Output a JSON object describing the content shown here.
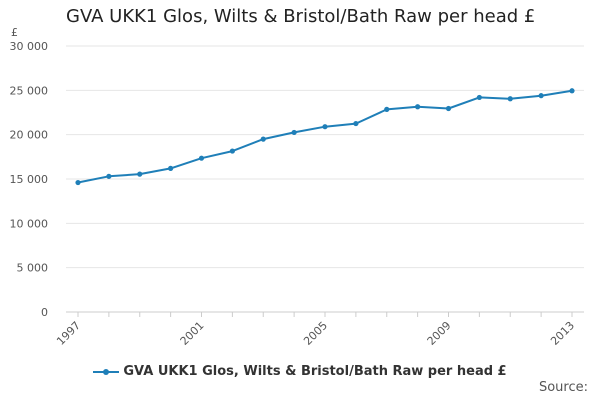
{
  "chart_data": {
    "type": "line",
    "title": "GVA UKK1 Glos, Wilts & Bristol/Bath Raw per head £",
    "unit_label": "£",
    "xlabel": "",
    "ylabel": "",
    "x": [
      1997,
      1998,
      1999,
      2000,
      2001,
      2002,
      2003,
      2004,
      2005,
      2006,
      2007,
      2008,
      2009,
      2010,
      2011,
      2012,
      2013
    ],
    "x_tick_labels": [
      "1997",
      "2001",
      "2005",
      "2009",
      "2013"
    ],
    "ylim": [
      0,
      30000
    ],
    "y_ticks": [
      0,
      5000,
      10000,
      15000,
      20000,
      25000,
      30000
    ],
    "y_tick_labels": [
      "0",
      "5 000",
      "10 000",
      "15 000",
      "20 000",
      "25 000",
      "30 000"
    ],
    "series": [
      {
        "name": "GVA UKK1 Glos, Wilts & Bristol/Bath Raw per head £",
        "values": [
          14600,
          15300,
          15550,
          16200,
          17350,
          18150,
          19500,
          20250,
          20900,
          21250,
          22850,
          23150,
          22950,
          24200,
          24050,
          24400,
          24950
        ]
      }
    ],
    "grid": true,
    "legend_position": "bottom",
    "colors": {
      "series": "#1f7fb8",
      "grid": "#e6e6e6",
      "axis": "#cccccc"
    }
  },
  "legend": {
    "label": "GVA UKK1 Glos, Wilts & Bristol/Bath Raw per head £"
  },
  "footer": {
    "source_label": "Source:"
  }
}
